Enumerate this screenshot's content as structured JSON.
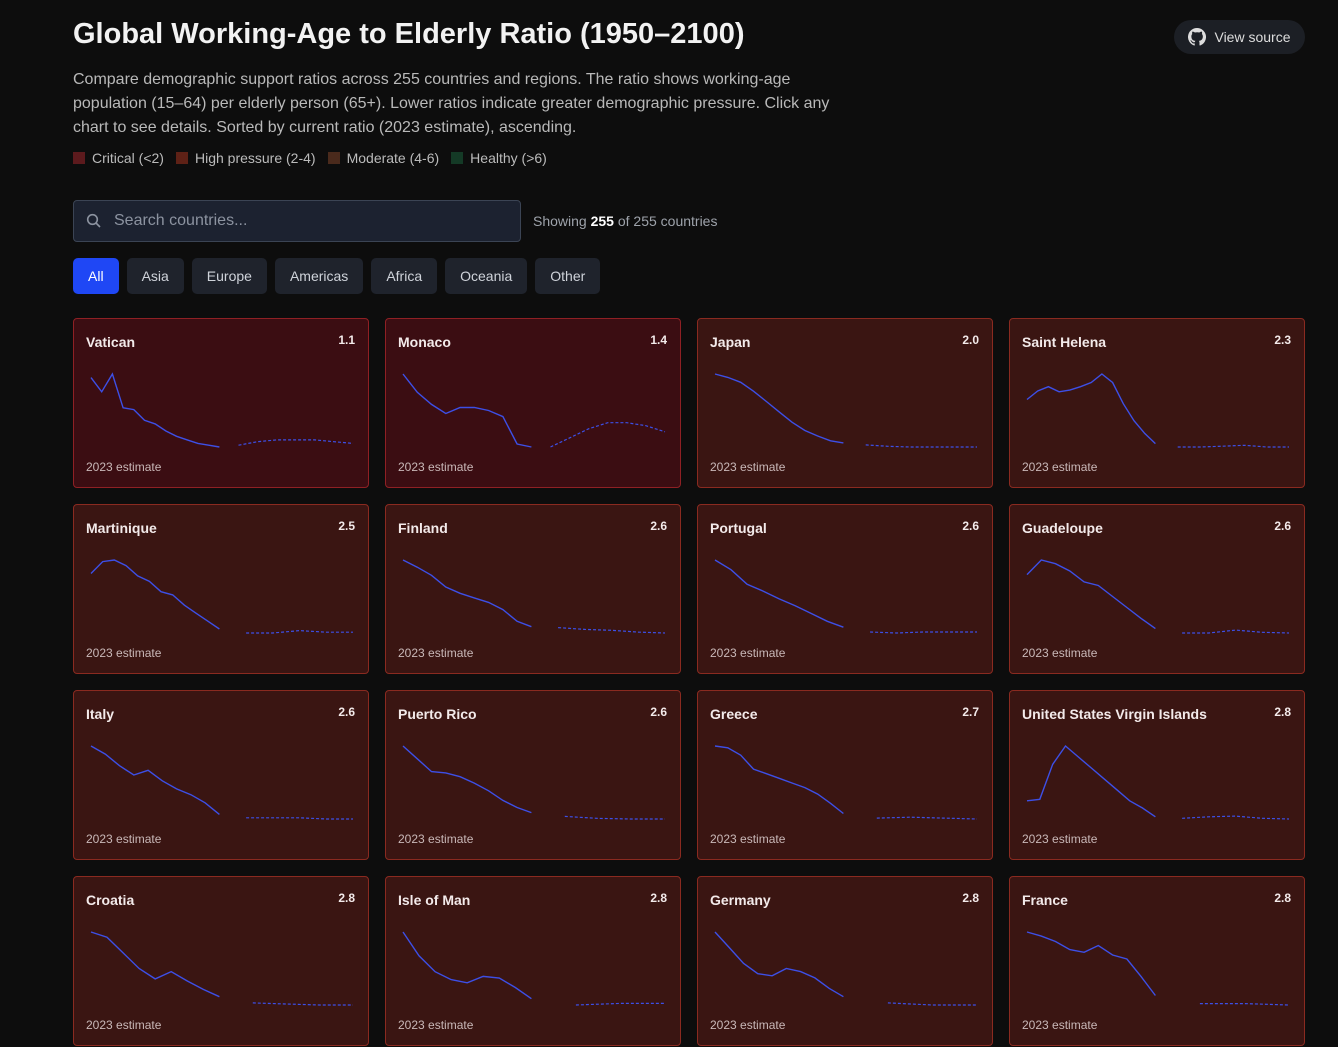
{
  "header": {
    "title": "Global Working-Age to Elderly Ratio (1950–2100)",
    "source_button": "View source",
    "description": "Compare demographic support ratios across 255 countries and regions. The ratio shows working-age population (15–64) per elderly person (65+). Lower ratios indicate greater demographic pressure. Click any chart to see details. Sorted by current ratio (2023 estimate), ascending.",
    "legend": [
      {
        "label": "Critical (<2)",
        "color": "#5c1a1d"
      },
      {
        "label": "High pressure (2-4)",
        "color": "#5e2116"
      },
      {
        "label": "Moderate (4-6)",
        "color": "#4a2a1c"
      },
      {
        "label": "Healthy (>6)",
        "color": "#143a26"
      }
    ]
  },
  "search": {
    "placeholder": "Search countries...",
    "showing_prefix": "Showing",
    "showing_count": "255",
    "showing_suffix": "of 255 countries"
  },
  "filters": [
    "All",
    "Asia",
    "Europe",
    "Americas",
    "Africa",
    "Oceania",
    "Other"
  ],
  "cards": [
    {
      "name": "Vatican",
      "ratio": "1.1",
      "footnote": "2023 estimate",
      "history": [
        5.0,
        4.2,
        5.2,
        3.3,
        3.2,
        2.6,
        2.4,
        2.0,
        1.7,
        1.5,
        1.3,
        1.2,
        1.1
      ],
      "projection": [
        1.2,
        1.4,
        1.5,
        1.5,
        1.5,
        1.4,
        1.3
      ]
    },
    {
      "name": "Monaco",
      "ratio": "1.4",
      "footnote": "2023 estimate",
      "history": [
        3.8,
        3.2,
        2.8,
        2.5,
        2.7,
        2.7,
        2.6,
        2.4,
        1.5,
        1.4
      ],
      "projection": [
        1.4,
        1.7,
        2.0,
        2.2,
        2.2,
        2.1,
        1.9
      ]
    },
    {
      "name": "Japan",
      "ratio": "2.0",
      "footnote": "2023 estimate",
      "history": [
        12.0,
        11.5,
        10.8,
        9.5,
        8.0,
        6.5,
        5.0,
        3.8,
        3.0,
        2.3,
        2.0
      ],
      "projection": [
        1.7,
        1.5,
        1.4,
        1.4,
        1.4,
        1.4
      ]
    },
    {
      "name": "Saint Helena",
      "ratio": "2.3",
      "footnote": "2023 estimate",
      "history": [
        7.5,
        8.5,
        9.0,
        8.4,
        8.6,
        9.0,
        9.5,
        10.5,
        9.5,
        7.0,
        5.0,
        3.5,
        2.3
      ],
      "projection": [
        1.9,
        1.9,
        2.0,
        2.1,
        1.9,
        1.9
      ]
    },
    {
      "name": "Martinique",
      "ratio": "2.5",
      "footnote": "2023 estimate",
      "history": [
        9.5,
        11,
        11.2,
        10.5,
        9.2,
        8.5,
        7.2,
        6.8,
        5.5,
        4.5,
        3.5,
        2.5
      ],
      "projection": [
        2.0,
        2.0,
        2.3,
        2.1,
        2.1
      ]
    },
    {
      "name": "Finland",
      "ratio": "2.6",
      "footnote": "2023 estimate",
      "history": [
        10,
        9.2,
        8.3,
        7,
        6.3,
        5.8,
        5.3,
        4.5,
        3.2,
        2.6
      ],
      "projection": [
        2.5,
        2.3,
        2.2,
        2.0,
        1.9
      ]
    },
    {
      "name": "Portugal",
      "ratio": "2.6",
      "footnote": "2023 estimate",
      "history": [
        9.5,
        8.5,
        7,
        6.3,
        5.5,
        4.8,
        4,
        3.2,
        2.6
      ],
      "projection": [
        2.1,
        2.0,
        2.1,
        2.1,
        2.1
      ]
    },
    {
      "name": "Guadeloupe",
      "ratio": "2.6",
      "footnote": "2023 estimate",
      "history": [
        10,
        12,
        11.5,
        10.5,
        9,
        8.5,
        7,
        5.5,
        4,
        2.6
      ],
      "projection": [
        2.0,
        2.0,
        2.4,
        2.1,
        2.0
      ]
    },
    {
      "name": "Italy",
      "ratio": "2.6",
      "footnote": "2023 estimate",
      "history": [
        8.5,
        7.8,
        6.8,
        6,
        6.4,
        5.5,
        4.8,
        4.3,
        3.6,
        2.6
      ],
      "projection": [
        2.3,
        2.3,
        2.3,
        2.2,
        2.2
      ]
    },
    {
      "name": "Puerto Rico",
      "ratio": "2.6",
      "footnote": "2023 estimate",
      "history": [
        13,
        11,
        9,
        8.8,
        8.2,
        7.2,
        6,
        4.5,
        3.4,
        2.6
      ],
      "projection": [
        2.0,
        1.7,
        1.6,
        1.6
      ]
    },
    {
      "name": "Greece",
      "ratio": "2.7",
      "footnote": "2023 estimate",
      "history": [
        10,
        9.8,
        9,
        7.5,
        7,
        6.5,
        6,
        5.5,
        4.8,
        3.8,
        2.7
      ],
      "projection": [
        2.2,
        2.3,
        2.2,
        2.1
      ]
    },
    {
      "name": "United States Virgin Islands",
      "ratio": "2.8",
      "footnote": "2023 estimate",
      "history": [
        5,
        5.2,
        10,
        12.5,
        11,
        9.5,
        8,
        6.5,
        5,
        4,
        2.8
      ],
      "projection": [
        2.6,
        2.8,
        2.9,
        2.6,
        2.5
      ]
    },
    {
      "name": "Croatia",
      "ratio": "2.8",
      "footnote": "2023 estimate",
      "history": [
        9,
        8.5,
        7,
        5.5,
        4.5,
        5.2,
        4.3,
        3.5,
        2.8
      ],
      "projection": [
        2.2,
        2.1,
        2.0,
        2.0
      ]
    },
    {
      "name": "Isle of Man",
      "ratio": "2.8",
      "footnote": "2023 estimate",
      "history": [
        7,
        5.5,
        4.5,
        4,
        3.8,
        4.2,
        4.1,
        3.5,
        2.8
      ],
      "projection": [
        2.4,
        2.5,
        2.5
      ]
    },
    {
      "name": "Germany",
      "ratio": "2.8",
      "footnote": "2023 estimate",
      "history": [
        9,
        7.5,
        6,
        5,
        4.8,
        5.5,
        5.2,
        4.6,
        3.6,
        2.8
      ],
      "projection": [
        2.2,
        2.0,
        2.0
      ]
    },
    {
      "name": "France",
      "ratio": "2.8",
      "footnote": "2023 estimate",
      "history": [
        7.5,
        7.2,
        6.8,
        6.2,
        6,
        6.5,
        5.8,
        5.5,
        4.2,
        2.8
      ],
      "projection": [
        2.2,
        2.2,
        2.1
      ]
    }
  ]
}
